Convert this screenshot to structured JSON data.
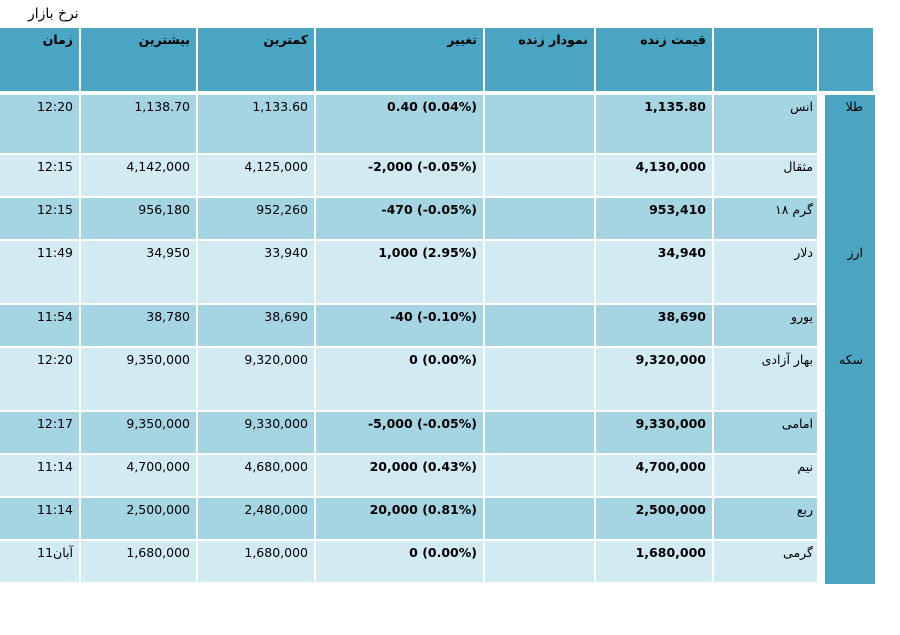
{
  "page": {
    "title": "نرخ بازار"
  },
  "headers": {
    "time": "زمان",
    "max": "بیشترین",
    "min": "کمترین",
    "change": "تغییر",
    "live_chart": "نمودار زنده",
    "live_price": "قیمت زنده",
    "item": "",
    "group": ""
  },
  "groups": {
    "gold": "طلا",
    "currency": "ارز",
    "coin": "سکه"
  },
  "rows": [
    {
      "name": "انس",
      "price": "1,135.80",
      "chart": "",
      "change": "0.40 (0.04%)",
      "min": "1,133.60",
      "max": "1,138.70",
      "time": "12:20"
    },
    {
      "name": "مثقال",
      "price": "4,130,000",
      "chart": "",
      "change": "-2,000 (-0.05%)",
      "min": "4,125,000",
      "max": "4,142,000",
      "time": "12:15"
    },
    {
      "name": "گرم ۱۸",
      "price": "953,410",
      "chart": "",
      "change": "-470 (-0.05%)",
      "min": "952,260",
      "max": "956,180",
      "time": "12:15"
    },
    {
      "name": "دلار",
      "price": "34,940",
      "chart": "",
      "change": "1,000 (2.95%)",
      "min": "33,940",
      "max": "34,950",
      "time": "11:49"
    },
    {
      "name": "یورو",
      "price": "38,690",
      "chart": "",
      "change": "-40 (-0.10%)",
      "min": "38,690",
      "max": "38,780",
      "time": "11:54"
    },
    {
      "name": "بهار آزادی",
      "price": "9,320,000",
      "chart": "",
      "change": "0 (0.00%)",
      "min": "9,320,000",
      "max": "9,350,000",
      "time": "12:20"
    },
    {
      "name": "امامی",
      "price": "9,330,000",
      "chart": "",
      "change": "-5,000 (-0.05%)",
      "min": "9,330,000",
      "max": "9,350,000",
      "time": "12:17"
    },
    {
      "name": "نیم",
      "price": "4,700,000",
      "chart": "",
      "change": "20,000 (0.43%)",
      "min": "4,680,000",
      "max": "4,700,000",
      "time": "11:14"
    },
    {
      "name": "ربع",
      "price": "2,500,000",
      "chart": "",
      "change": "20,000 (0.81%)",
      "min": "2,480,000",
      "max": "2,500,000",
      "time": "11:14"
    },
    {
      "name": "گرمی",
      "price": "1,680,000",
      "chart": "",
      "change": "0 (0.00%)",
      "min": "1,680,000",
      "max": "1,680,000",
      "time": "11آبان"
    }
  ],
  "colors": {
    "header": "#4aa5c2",
    "row_dark": "#a5d4e3",
    "row_light": "#d2eaf2"
  }
}
